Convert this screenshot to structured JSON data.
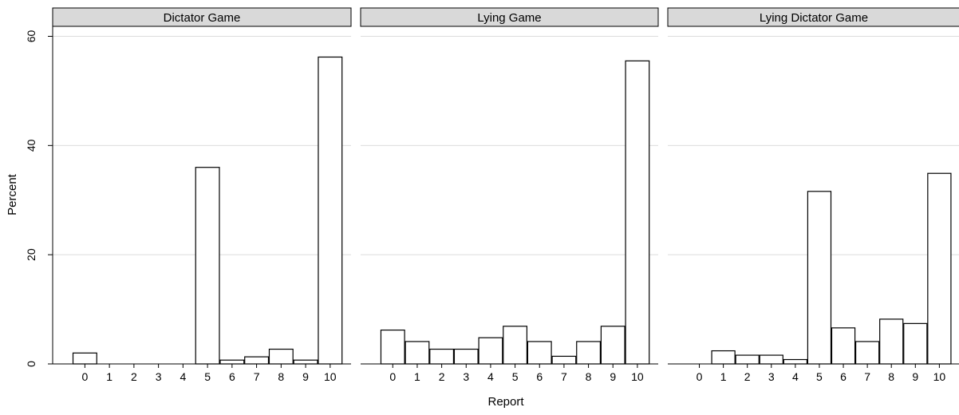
{
  "chart_data": {
    "type": "bar",
    "ylabel": "Percent",
    "xlabel": "Report",
    "ylim": [
      0,
      62
    ],
    "yticks": [
      0,
      20,
      40,
      60
    ],
    "grid": true,
    "categories": [
      "0",
      "1",
      "2",
      "3",
      "4",
      "5",
      "6",
      "7",
      "8",
      "9",
      "10"
    ],
    "panels": [
      {
        "title": "Dictator Game",
        "values": [
          2.0,
          0,
          0,
          0,
          0,
          36.0,
          0.7,
          1.3,
          2.7,
          0.7,
          56.2
        ]
      },
      {
        "title": "Lying Game",
        "values": [
          6.2,
          4.1,
          2.7,
          2.7,
          4.8,
          6.9,
          4.1,
          1.4,
          4.1,
          6.9,
          55.5
        ]
      },
      {
        "title": "Lying Dictator Game",
        "values": [
          0,
          2.4,
          1.6,
          1.6,
          0.8,
          31.6,
          6.6,
          4.1,
          8.2,
          7.4,
          34.9
        ]
      }
    ]
  }
}
